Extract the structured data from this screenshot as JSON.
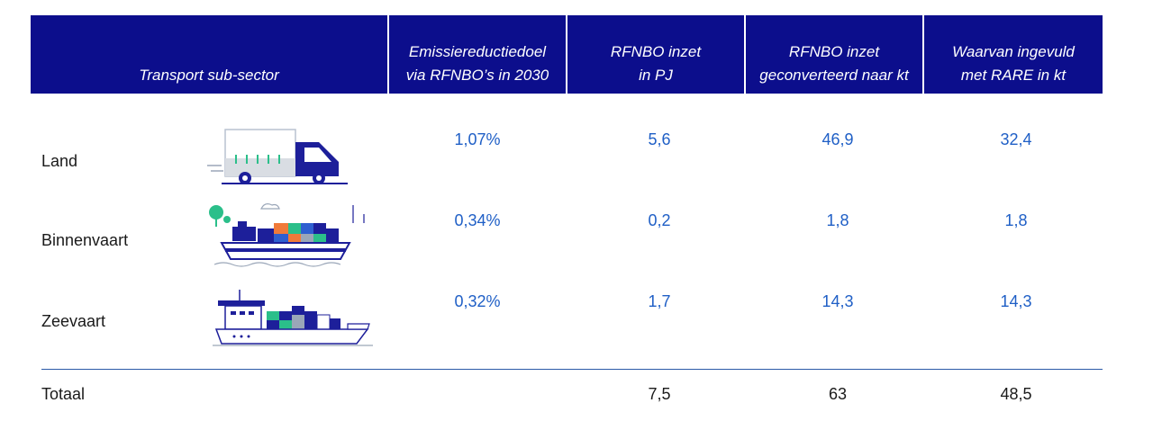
{
  "table": {
    "headers": [
      "Transport sub-sector",
      "Emissiereductiedoel\nvia RFNBO’s in 2030",
      "RFNBO inzet\nin PJ",
      "RFNBO inzet\ngeconverteerd naar kt",
      "Waarvan ingevuld\nmet RARE in kt"
    ],
    "rows": [
      {
        "sector": "Land",
        "icon": "truck-icon",
        "emissie": "1,07%",
        "pj": "5,6",
        "kt": "46,9",
        "rare": "32,4"
      },
      {
        "sector": "Binnenvaart",
        "icon": "barge-icon",
        "emissie": "0,34%",
        "pj": "0,2",
        "kt": "1,8",
        "rare": "1,8"
      },
      {
        "sector": "Zeevaart",
        "icon": "container-ship-icon",
        "emissie": "0,32%",
        "pj": "1,7",
        "kt": "14,3",
        "rare": "14,3"
      }
    ],
    "total": {
      "label": "Totaal",
      "pj": "7,5",
      "kt": "63",
      "rare": "48,5"
    }
  },
  "colors": {
    "header_bg": "#0c0e8c",
    "value_text": "#1f5fc6",
    "divider": "#2b5aa8"
  }
}
